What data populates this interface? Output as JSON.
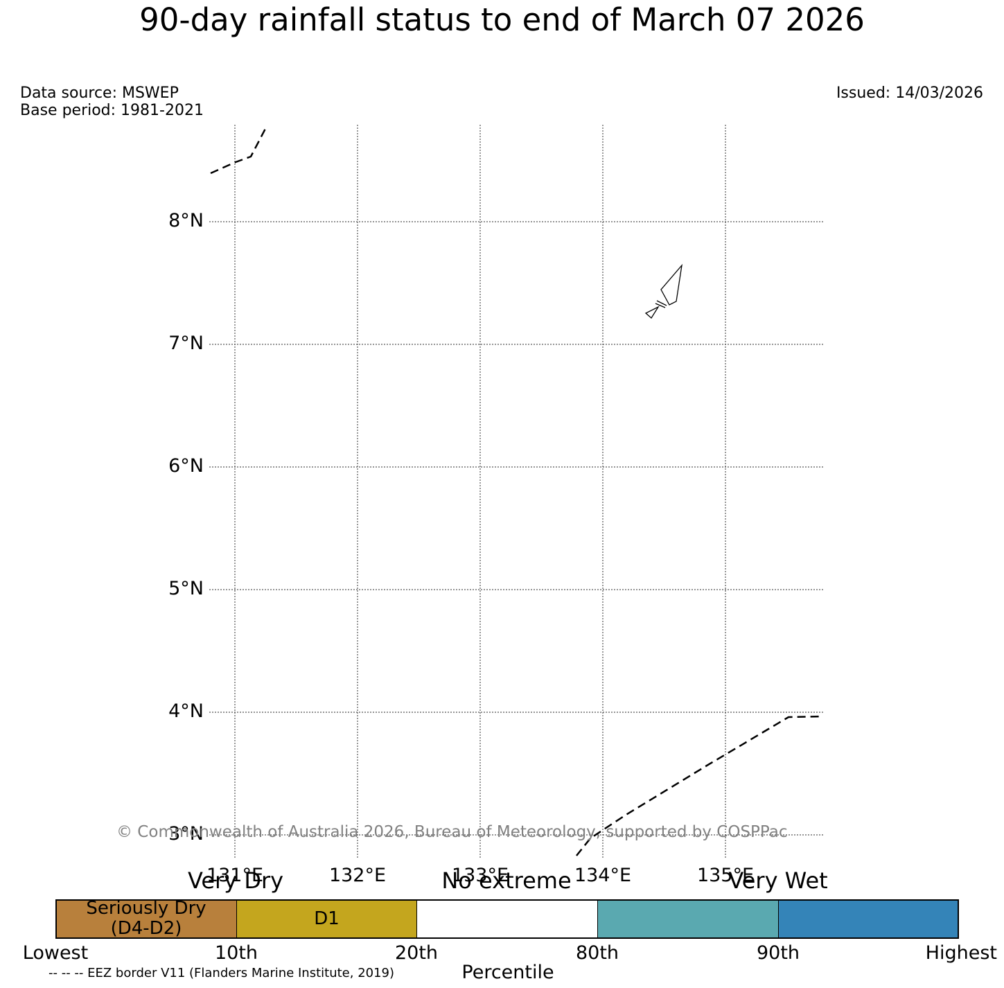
{
  "title": "90-day rainfall status to end of March 07 2026",
  "data_source": "Data source: MSWEP",
  "base_period": "Base period: 1981-2021",
  "issued": "Issued: 14/03/2026",
  "map": {
    "lat_labels": [
      "8°N",
      "7°N",
      "6°N",
      "5°N",
      "4°N",
      "3°N"
    ],
    "lon_labels": [
      "131°E",
      "132°E",
      "133°E",
      "134°E",
      "135°E"
    ],
    "gridline_color": "#555555"
  },
  "copyright": "© Commonwealth of Australia 2026, Bureau of Meteorology, supported by COSPPac",
  "legend": {
    "categories": [
      "Very Dry",
      "No extreme",
      "Very Wet"
    ],
    "boxes": [
      {
        "line1": "Seriously Dry",
        "line2": "(D4-D2)",
        "color": "#b8803c"
      },
      {
        "line1": "D1",
        "line2": "",
        "color": "#c4a61e"
      },
      {
        "line1": "",
        "line2": "",
        "color": "#ffffff"
      },
      {
        "line1": "",
        "line2": "",
        "color": "#5aa9b0"
      },
      {
        "line1": "",
        "line2": "",
        "color": "#3484b8"
      }
    ],
    "ticks": [
      "Lowest",
      "10th",
      "20th",
      "80th",
      "90th",
      "Highest"
    ],
    "axis_label": "Percentile"
  },
  "eez_note": "-- -- -- EEZ border V11 (Flanders Marine Institute, 2019)"
}
